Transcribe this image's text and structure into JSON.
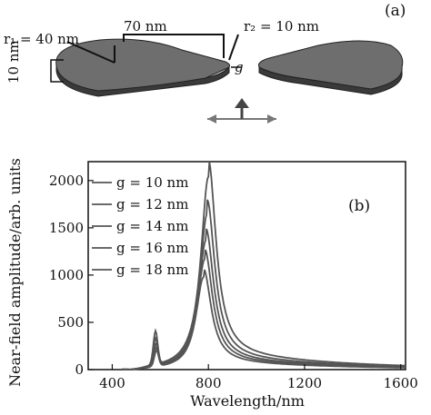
{
  "figure": {
    "panel_a": {
      "label": "(a)",
      "r1_label": "r₁ = 40 nm",
      "distance_label": "70 nm",
      "r2_label": "r₂ = 10 nm",
      "gap_label": "g",
      "thickness_label": "10 nm"
    },
    "panel_b": {
      "label": "(b)"
    }
  },
  "chart_data": {
    "type": "line",
    "xlabel": "Wavelength/nm",
    "ylabel": "Near-field amplitude/arb. units",
    "xlim": [
      300,
      1620
    ],
    "ylim": [
      0,
      2200
    ],
    "xticks": [
      400,
      800,
      1200,
      1600
    ],
    "yticks": [
      0,
      500,
      1000,
      1500,
      2000
    ],
    "legend_position": "top-left",
    "line_color": "#555555",
    "series": [
      {
        "name": "g = 10 nm",
        "peak_x": 800,
        "peak_y": 2040,
        "shoulder_x": 580,
        "shoulder_y": 410
      },
      {
        "name": "g = 12 nm",
        "peak_x": 795,
        "peak_y": 1650,
        "shoulder_x": 580,
        "shoulder_y": 330
      },
      {
        "name": "g = 14 nm",
        "peak_x": 790,
        "peak_y": 1370,
        "shoulder_x": 582,
        "shoulder_y": 280
      },
      {
        "name": "g = 16 nm",
        "peak_x": 785,
        "peak_y": 1170,
        "shoulder_x": 582,
        "shoulder_y": 240
      },
      {
        "name": "g = 18 nm",
        "peak_x": 780,
        "peak_y": 980,
        "shoulder_x": 584,
        "shoulder_y": 205
      }
    ],
    "legend": [
      "g = 10 nm",
      "g = 12 nm",
      "g = 14 nm",
      "g = 16 nm",
      "g = 18 nm"
    ]
  }
}
